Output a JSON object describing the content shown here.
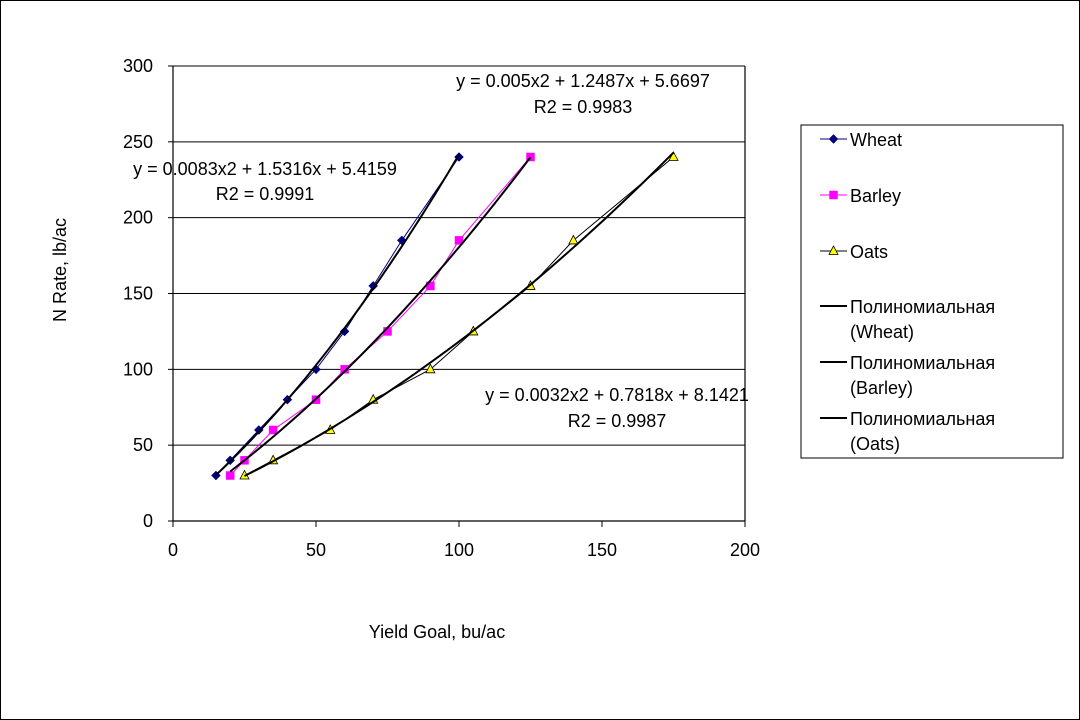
{
  "chart_data": {
    "type": "scatter",
    "xlabel": "Yield Goal, bu/ac",
    "ylabel": "N Rate, lb/ac",
    "xlim": [
      0,
      200
    ],
    "ylim": [
      0,
      300
    ],
    "xticks": [
      "0",
      "50",
      "100",
      "150",
      "200"
    ],
    "yticks": [
      "0",
      "50",
      "100",
      "150",
      "200",
      "250",
      "300"
    ],
    "grid": "horizontal",
    "legend_position": "right",
    "series": [
      {
        "name": "Wheat",
        "color": "#000080",
        "marker": "diamond",
        "x": [
          15,
          20,
          30,
          40,
          50,
          60,
          70,
          80,
          100
        ],
        "y": [
          30,
          40,
          60,
          80,
          100,
          125,
          155,
          185,
          240
        ]
      },
      {
        "name": "Barley",
        "color": "#ff00ff",
        "marker": "square",
        "x": [
          20,
          25,
          35,
          50,
          60,
          75,
          90,
          100,
          125
        ],
        "y": [
          30,
          40,
          60,
          80,
          100,
          125,
          155,
          185,
          240
        ]
      },
      {
        "name": "Oats",
        "color": "#ffff00",
        "marker": "triangle",
        "x": [
          25,
          35,
          55,
          70,
          90,
          105,
          125,
          140,
          175
        ],
        "y": [
          30,
          40,
          60,
          80,
          100,
          125,
          155,
          185,
          240
        ]
      }
    ],
    "trendlines": [
      {
        "name": "Полиномиальная (Wheat)",
        "series": "Wheat",
        "a": 0.0083,
        "b": 1.5316,
        "c": 5.4159,
        "x_range": [
          15,
          100
        ],
        "equation": "y = 0.0083x2 + 1.5316x + 5.4159",
        "r2": "R2 = 0.9991"
      },
      {
        "name": "Полиномиальная (Barley)",
        "series": "Barley",
        "a": 0.005,
        "b": 1.2487,
        "c": 5.6697,
        "x_range": [
          20,
          125
        ],
        "equation": "y = 0.005x2 + 1.2487x + 5.6697",
        "r2": "R2 = 0.9983"
      },
      {
        "name": "Полиномиальная (Oats)",
        "series": "Oats",
        "a": 0.0032,
        "b": 0.7818,
        "c": 8.1421,
        "x_range": [
          25,
          175
        ],
        "equation": "y = 0.0032x2 + 0.7818x + 8.1421",
        "r2": "R2 = 0.9987"
      }
    ],
    "legend": [
      {
        "label": "Wheat",
        "marker": "diamond",
        "color": "#000080"
      },
      {
        "label": "Barley",
        "marker": "square",
        "color": "#ff00ff"
      },
      {
        "label": "Oats",
        "marker": "triangle",
        "color": "#ffff00"
      },
      {
        "label": "Полиномиальная",
        "label2": "(Wheat)",
        "marker": "line",
        "color": "#000000"
      },
      {
        "label": "Полиномиальная",
        "label2": "(Barley)",
        "marker": "line",
        "color": "#000000"
      },
      {
        "label": "Полиномиальная",
        "label2": "(Oats)",
        "marker": "line",
        "color": "#000000"
      }
    ]
  }
}
